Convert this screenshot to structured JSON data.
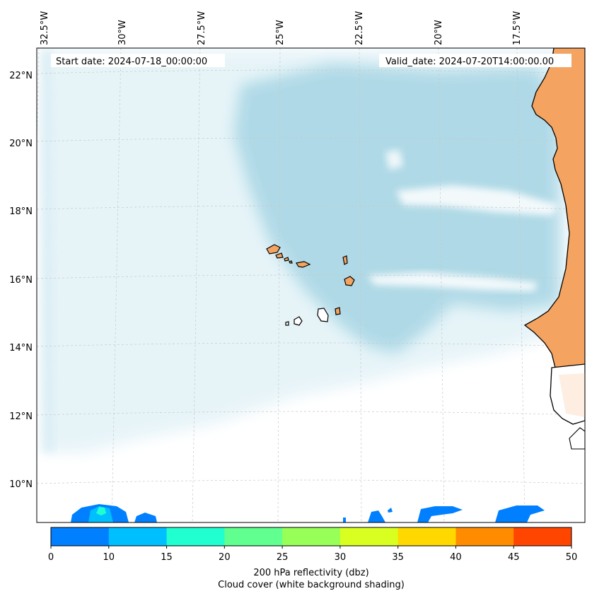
{
  "map": {
    "lon_labels": [
      "32.5°W",
      "30°W",
      "27.5°W",
      "25°W",
      "22.5°W",
      "20°W",
      "17.5°W"
    ],
    "lat_labels": [
      "22°N",
      "20°N",
      "18°N",
      "16°N",
      "14°N",
      "12°N",
      "10°N"
    ],
    "start_date": "Start date: 2024-07-18_00:00:00",
    "valid_date": "Valid_date: 2024-07-20T14:00:00.00",
    "cloud_color": "#add8e6",
    "land_color": "#f4a460",
    "grid": true
  },
  "colorbar": {
    "ticks": [
      "0",
      "10",
      "15",
      "20",
      "25",
      "30",
      "35",
      "40",
      "45",
      "50"
    ],
    "colors": [
      "#0080ff",
      "#00bfff",
      "#20ffd0",
      "#60ff90",
      "#98ff58",
      "#d8ff20",
      "#ffd800",
      "#ff8c00",
      "#ff4500"
    ],
    "label_line1": "200 hPa reflectivity (dbz)",
    "label_line2": "Cloud cover (white background shading)"
  }
}
